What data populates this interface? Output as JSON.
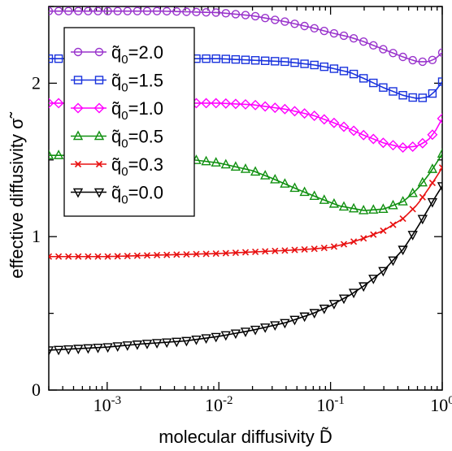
{
  "chart_data": {
    "type": "line",
    "xlabel": "molecular  diffusivity  D̃",
    "ylabel": "effective  diffusivity  σ̃",
    "x_scale": "log",
    "xlim": [
      0.0003,
      1.0
    ],
    "ylim": [
      0,
      2.5
    ],
    "y_ticks": [
      {
        "value": 0,
        "label": "0"
      },
      {
        "value": 1,
        "label": "1"
      },
      {
        "value": 2,
        "label": "2"
      }
    ],
    "x_ticks": [
      {
        "value": 0.001,
        "base": "10",
        "exp": "-3"
      },
      {
        "value": 0.01,
        "base": "10",
        "exp": "-2"
      },
      {
        "value": 0.1,
        "base": "10",
        "exp": "-1"
      },
      {
        "value": 1,
        "base": "10",
        "exp": "0"
      }
    ],
    "legend_position": "upper-left",
    "series": [
      {
        "name": "q̃0=2.0",
        "label_main": "q̃",
        "label_sub": "0",
        "label_val": "=2.0",
        "color": "#9933cc",
        "marker": "circle",
        "points": [
          [
            0.0003,
            2.47
          ],
          [
            0.001,
            2.47
          ],
          [
            0.003,
            2.47
          ],
          [
            0.01,
            2.46
          ],
          [
            0.02,
            2.44
          ],
          [
            0.04,
            2.4
          ],
          [
            0.07,
            2.36
          ],
          [
            0.1,
            2.33
          ],
          [
            0.15,
            2.3
          ],
          [
            0.2,
            2.27
          ],
          [
            0.3,
            2.22
          ],
          [
            0.45,
            2.17
          ],
          [
            0.6,
            2.14
          ],
          [
            0.75,
            2.14
          ],
          [
            0.87,
            2.16
          ],
          [
            1.0,
            2.2
          ]
        ]
      },
      {
        "name": "q̃0=1.5",
        "label_main": "q̃",
        "label_sub": "0",
        "label_val": "=1.5",
        "color": "#1a33dd",
        "marker": "square",
        "points": [
          [
            0.0003,
            2.16
          ],
          [
            0.001,
            2.16
          ],
          [
            0.003,
            2.16
          ],
          [
            0.01,
            2.16
          ],
          [
            0.02,
            2.15
          ],
          [
            0.04,
            2.14
          ],
          [
            0.07,
            2.12
          ],
          [
            0.1,
            2.1
          ],
          [
            0.15,
            2.07
          ],
          [
            0.2,
            2.03
          ],
          [
            0.3,
            1.97
          ],
          [
            0.45,
            1.92
          ],
          [
            0.6,
            1.9
          ],
          [
            0.75,
            1.91
          ],
          [
            0.87,
            1.95
          ],
          [
            1.0,
            2.01
          ]
        ]
      },
      {
        "name": "q̃0=1.0",
        "label_main": "q̃",
        "label_sub": "0",
        "label_val": "=1.0",
        "color": "#ff00ff",
        "marker": "diamond",
        "points": [
          [
            0.0003,
            1.87
          ],
          [
            0.001,
            1.87
          ],
          [
            0.003,
            1.87
          ],
          [
            0.01,
            1.87
          ],
          [
            0.02,
            1.86
          ],
          [
            0.04,
            1.83
          ],
          [
            0.07,
            1.79
          ],
          [
            0.1,
            1.75
          ],
          [
            0.15,
            1.7
          ],
          [
            0.2,
            1.66
          ],
          [
            0.3,
            1.61
          ],
          [
            0.45,
            1.58
          ],
          [
            0.6,
            1.59
          ],
          [
            0.75,
            1.63
          ],
          [
            0.87,
            1.69
          ],
          [
            1.0,
            1.77
          ]
        ]
      },
      {
        "name": "q̃0=0.5",
        "label_main": "q̃",
        "label_sub": "0",
        "label_val": "=0.5",
        "color": "#109010",
        "marker": "triangle-up",
        "points": [
          [
            0.0003,
            1.53
          ],
          [
            0.001,
            1.53
          ],
          [
            0.003,
            1.52
          ],
          [
            0.006,
            1.5
          ],
          [
            0.01,
            1.48
          ],
          [
            0.02,
            1.43
          ],
          [
            0.03,
            1.38
          ],
          [
            0.05,
            1.31
          ],
          [
            0.08,
            1.25
          ],
          [
            0.12,
            1.2
          ],
          [
            0.2,
            1.17
          ],
          [
            0.3,
            1.18
          ],
          [
            0.45,
            1.23
          ],
          [
            0.6,
            1.31
          ],
          [
            0.75,
            1.4
          ],
          [
            0.87,
            1.47
          ],
          [
            1.0,
            1.54
          ]
        ]
      },
      {
        "name": "q̃0=0.3",
        "label_main": "q̃",
        "label_sub": "0",
        "label_val": "=0.3",
        "color": "#e81010",
        "marker": "x",
        "points": [
          [
            0.0003,
            0.87
          ],
          [
            0.001,
            0.87
          ],
          [
            0.003,
            0.88
          ],
          [
            0.01,
            0.89
          ],
          [
            0.02,
            0.9
          ],
          [
            0.04,
            0.91
          ],
          [
            0.07,
            0.92
          ],
          [
            0.1,
            0.93
          ],
          [
            0.15,
            0.96
          ],
          [
            0.2,
            0.99
          ],
          [
            0.3,
            1.04
          ],
          [
            0.45,
            1.12
          ],
          [
            0.6,
            1.21
          ],
          [
            0.75,
            1.31
          ],
          [
            0.87,
            1.38
          ],
          [
            1.0,
            1.45
          ]
        ]
      },
      {
        "name": "q̃0=0.0",
        "label_main": "q̃",
        "label_sub": "0",
        "label_val": "=0.0",
        "color": "#000000",
        "marker": "triangle-down",
        "points": [
          [
            0.0003,
            0.26
          ],
          [
            0.001,
            0.28
          ],
          [
            0.002,
            0.3
          ],
          [
            0.005,
            0.32
          ],
          [
            0.01,
            0.35
          ],
          [
            0.02,
            0.39
          ],
          [
            0.04,
            0.44
          ],
          [
            0.07,
            0.5
          ],
          [
            0.1,
            0.55
          ],
          [
            0.15,
            0.62
          ],
          [
            0.2,
            0.68
          ],
          [
            0.3,
            0.78
          ],
          [
            0.45,
            0.92
          ],
          [
            0.6,
            1.06
          ],
          [
            0.75,
            1.18
          ],
          [
            0.87,
            1.26
          ],
          [
            1.0,
            1.33
          ]
        ]
      }
    ]
  }
}
